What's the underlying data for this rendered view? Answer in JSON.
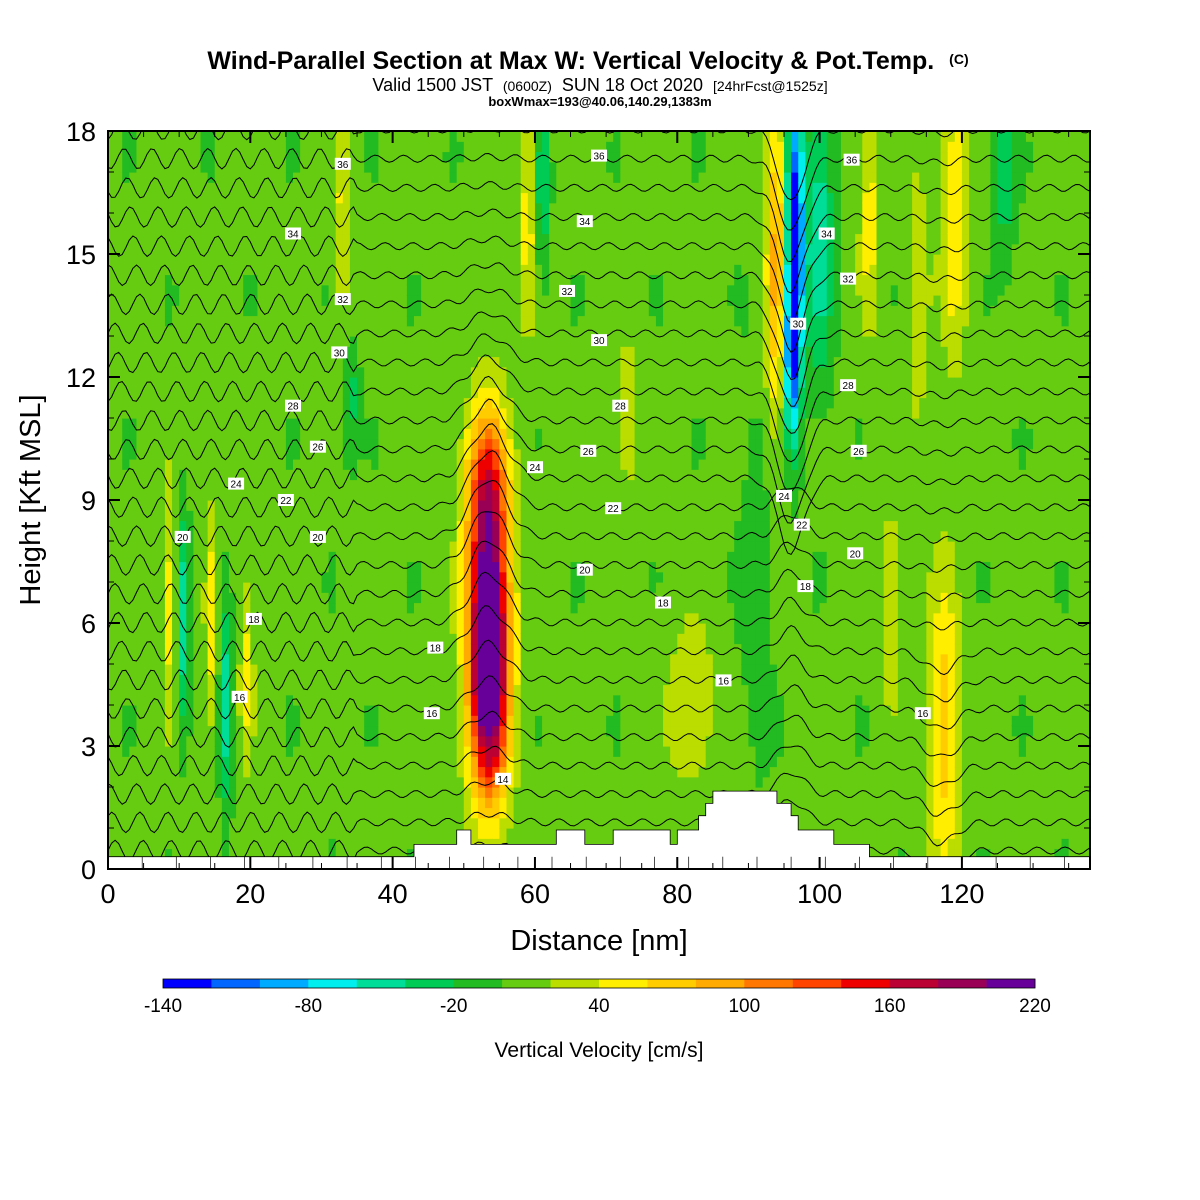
{
  "chart_data": {
    "type": "heatmap",
    "title": "Wind-Parallel Section at Max W: Vertical Velocity & Pot.Temp.",
    "title_mark": "(C)",
    "subtitle_parts": [
      "Valid 1500 JST",
      "(0600Z)",
      "SUN 18 Oct 2020",
      "[24hrFcst@1525z]"
    ],
    "subtitle2": "boxWmax=193@40.06,140.29,1383m",
    "xlabel": "Distance [nm]",
    "ylabel": "Height [Kft MSL]",
    "xlim": [
      0,
      138
    ],
    "ylim": [
      0,
      18
    ],
    "xticks": [
      0,
      20,
      40,
      60,
      80,
      100,
      120
    ],
    "yticks": [
      0,
      3,
      6,
      9,
      12,
      15,
      18
    ],
    "colorbar": {
      "label": "Vertical Velocity [cm/s]",
      "range": [
        -140,
        220
      ],
      "step": 20,
      "tick_values": [
        -140,
        -80,
        -20,
        40,
        100,
        160,
        220
      ],
      "colors": [
        "#0000ff",
        "#0066ff",
        "#00aaff",
        "#00eeee",
        "#00dd99",
        "#00cc55",
        "#22bb22",
        "#66cc11",
        "#bbdd00",
        "#ffee00",
        "#ffcc00",
        "#ffaa00",
        "#ff7700",
        "#ff4400",
        "#ee0000",
        "#bb0033",
        "#990055",
        "#660099"
      ]
    },
    "default_w": 5,
    "w_features": [
      {
        "x": 53.5,
        "z": 6.5,
        "sx": 2.0,
        "sz": 2.6,
        "w": 210
      },
      {
        "x": 53.5,
        "z": 4.0,
        "sx": 2.0,
        "sz": 1.8,
        "w": 110
      },
      {
        "x": 53.0,
        "z": 9.5,
        "sx": 2.2,
        "sz": 1.2,
        "w": 60
      },
      {
        "x": 96.5,
        "z": 15.5,
        "sx": 0.9,
        "sz": 2.5,
        "w": -150
      },
      {
        "x": 96.0,
        "z": 12.5,
        "sx": 0.8,
        "sz": 1.5,
        "w": -90
      },
      {
        "x": 94.0,
        "z": 15.0,
        "sx": 1.1,
        "sz": 3.0,
        "w": 85
      },
      {
        "x": 100.0,
        "z": 15.5,
        "sx": 1.3,
        "sz": 2.5,
        "w": -60
      },
      {
        "x": 117.5,
        "z": 3.5,
        "sx": 1.6,
        "sz": 2.5,
        "w": 70
      },
      {
        "x": 119.0,
        "z": 16.0,
        "sx": 1.4,
        "sz": 2.5,
        "w": 55
      },
      {
        "x": 8.5,
        "z": 6.5,
        "sx": 0.7,
        "sz": 2.0,
        "w": 45
      },
      {
        "x": 10.5,
        "z": 6.0,
        "sx": 0.6,
        "sz": 1.8,
        "w": -60
      },
      {
        "x": 14.5,
        "z": 6.0,
        "sx": 0.6,
        "sz": 2.0,
        "w": 45
      },
      {
        "x": 16.5,
        "z": 4.0,
        "sx": 0.6,
        "sz": 1.8,
        "w": -55
      },
      {
        "x": 19.5,
        "z": 5.0,
        "sx": 0.7,
        "sz": 1.8,
        "w": 40
      },
      {
        "x": 33.0,
        "z": 16.0,
        "sx": 0.8,
        "sz": 2.0,
        "w": 40
      },
      {
        "x": 34.0,
        "z": 11.5,
        "sx": 0.8,
        "sz": 1.0,
        "w": -35
      },
      {
        "x": 59.0,
        "z": 16.0,
        "sx": 0.9,
        "sz": 2.0,
        "w": 45
      },
      {
        "x": 61.0,
        "z": 16.5,
        "sx": 0.7,
        "sz": 1.5,
        "w": -45
      },
      {
        "x": 73.0,
        "z": 11.0,
        "sx": 1.0,
        "sz": 1.5,
        "w": 30
      },
      {
        "x": 82.0,
        "z": 4.0,
        "sx": 2.5,
        "sz": 1.5,
        "w": 35
      },
      {
        "x": 91.0,
        "z": 7.0,
        "sx": 1.5,
        "sz": 3.0,
        "w": -20
      },
      {
        "x": 107.0,
        "z": 16.0,
        "sx": 1.0,
        "sz": 2.0,
        "w": 45
      },
      {
        "x": 110.0,
        "z": 6.5,
        "sx": 1.0,
        "sz": 2.0,
        "w": 30
      },
      {
        "x": 126.0,
        "z": 17.0,
        "sx": 1.0,
        "sz": 1.5,
        "w": -40
      },
      {
        "x": 114.0,
        "z": 14.0,
        "sx": 1.0,
        "sz": 2.5,
        "w": 30
      }
    ],
    "theta_contour_start": 12,
    "theta_contour_step": 1,
    "theta_contour_count": 26,
    "theta_labels": [
      {
        "x": 33,
        "z": 17.2,
        "v": "36"
      },
      {
        "x": 69,
        "z": 17.4,
        "v": "36"
      },
      {
        "x": 104.5,
        "z": 17.3,
        "v": "36"
      },
      {
        "x": 26,
        "z": 15.5,
        "v": "34"
      },
      {
        "x": 67,
        "z": 15.8,
        "v": "34"
      },
      {
        "x": 101,
        "z": 15.5,
        "v": "34"
      },
      {
        "x": 33,
        "z": 13.9,
        "v": "32"
      },
      {
        "x": 64.5,
        "z": 14.1,
        "v": "32"
      },
      {
        "x": 104,
        "z": 14.4,
        "v": "32"
      },
      {
        "x": 32.5,
        "z": 12.6,
        "v": "30"
      },
      {
        "x": 69,
        "z": 12.9,
        "v": "30"
      },
      {
        "x": 97,
        "z": 13.3,
        "v": "30"
      },
      {
        "x": 26,
        "z": 11.3,
        "v": "28"
      },
      {
        "x": 72,
        "z": 11.3,
        "v": "28"
      },
      {
        "x": 104,
        "z": 11.8,
        "v": "28"
      },
      {
        "x": 29.5,
        "z": 10.3,
        "v": "26"
      },
      {
        "x": 67.5,
        "z": 10.2,
        "v": "26"
      },
      {
        "x": 105.5,
        "z": 10.2,
        "v": "26"
      },
      {
        "x": 18,
        "z": 9.4,
        "v": "24"
      },
      {
        "x": 60,
        "z": 9.8,
        "v": "24"
      },
      {
        "x": 95,
        "z": 9.1,
        "v": "24"
      },
      {
        "x": 25,
        "z": 9.0,
        "v": "22"
      },
      {
        "x": 71,
        "z": 8.8,
        "v": "22"
      },
      {
        "x": 97.5,
        "z": 8.4,
        "v": "22"
      },
      {
        "x": 10.5,
        "z": 8.1,
        "v": "20"
      },
      {
        "x": 29.5,
        "z": 8.1,
        "v": "20"
      },
      {
        "x": 67,
        "z": 7.3,
        "v": "20"
      },
      {
        "x": 105,
        "z": 7.7,
        "v": "20"
      },
      {
        "x": 20.5,
        "z": 6.1,
        "v": "18"
      },
      {
        "x": 46,
        "z": 5.4,
        "v": "18"
      },
      {
        "x": 78,
        "z": 6.5,
        "v": "18"
      },
      {
        "x": 98,
        "z": 6.9,
        "v": "18"
      },
      {
        "x": 18.5,
        "z": 4.2,
        "v": "16"
      },
      {
        "x": 45.5,
        "z": 3.8,
        "v": "16"
      },
      {
        "x": 86.5,
        "z": 4.6,
        "v": "16"
      },
      {
        "x": 114.5,
        "z": 3.8,
        "v": "16"
      },
      {
        "x": 55.5,
        "z": 2.2,
        "v": "14"
      }
    ],
    "terrain": [
      [
        0,
        0.3
      ],
      [
        43,
        0.3
      ],
      [
        43,
        0.6
      ],
      [
        49,
        0.6
      ],
      [
        49,
        0.95
      ],
      [
        51,
        0.95
      ],
      [
        51,
        0.6
      ],
      [
        63,
        0.6
      ],
      [
        63,
        0.95
      ],
      [
        67,
        0.95
      ],
      [
        67,
        0.6
      ],
      [
        71,
        0.6
      ],
      [
        71,
        0.95
      ],
      [
        79,
        0.95
      ],
      [
        79,
        0.6
      ],
      [
        80,
        0.6
      ],
      [
        80,
        0.95
      ],
      [
        83,
        0.95
      ],
      [
        83,
        1.3
      ],
      [
        84,
        1.3
      ],
      [
        84,
        1.6
      ],
      [
        85,
        1.6
      ],
      [
        85,
        1.9
      ],
      [
        94,
        1.9
      ],
      [
        94,
        1.6
      ],
      [
        96,
        1.6
      ],
      [
        96,
        1.3
      ],
      [
        97,
        1.3
      ],
      [
        97,
        0.95
      ],
      [
        102,
        0.95
      ],
      [
        102,
        0.6
      ],
      [
        107,
        0.6
      ],
      [
        107,
        0.3
      ],
      [
        138,
        0.3
      ]
    ]
  }
}
